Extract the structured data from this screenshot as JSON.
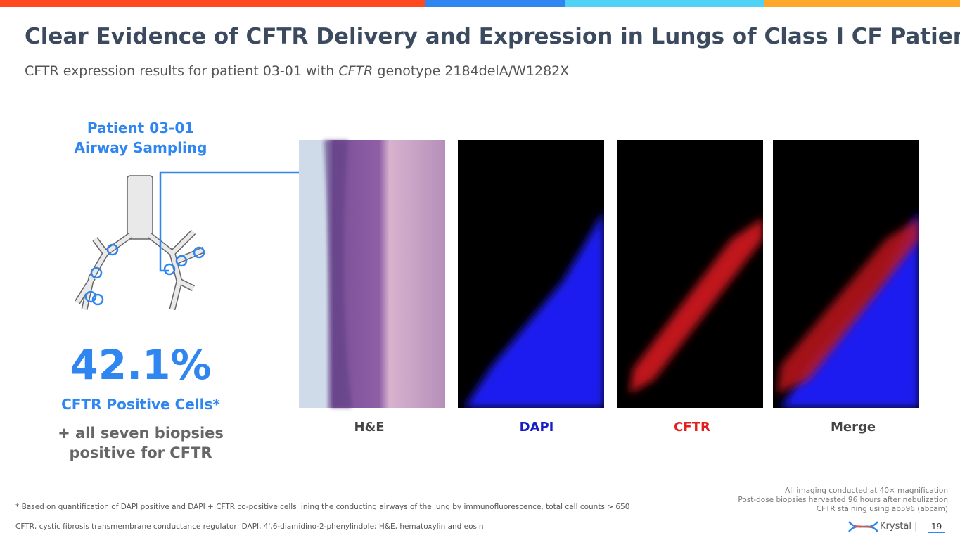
{
  "header": {
    "title": "Clear Evidence of CFTR Delivery and Expression in Lungs of Class I CF Patient",
    "subtitle": {
      "before": "CFTR expression results for patient 03-01 with",
      "italic": "CFTR",
      "after": "genotype 2184delA/W1282X"
    }
  },
  "left_panel": {
    "heading": [
      "Patient 03-01",
      "Airway Sampling"
    ],
    "stat": "42.1%",
    "stat_label": "CFTR Positive Cells*",
    "note": [
      "+ all seven biopsies",
      "positive for CFTR"
    ]
  },
  "images": {
    "labels": [
      "H&E",
      "DAPI",
      "CFTR",
      "Merge"
    ]
  },
  "notes": [
    "All imaging conducted at 40× magnification",
    "Post-dose biopsies harvested 96 hours after nebulization",
    "CFTR staining using ab596 (abcam)"
  ],
  "footnotes": [
    "* Based on quantification of DAPI positive and DAPI + CFTR co-positive cells lining the conducting airways of the lung by immunofluorescence, total cell counts > 650",
    "CFTR, cystic fibrosis transmembrane conductance regulator; DAPI, 4',6-diamidino-2-phenylindole; H&E, hematoxylin and eosin"
  ],
  "footer": {
    "brand": "Krystal |",
    "page": "19"
  }
}
